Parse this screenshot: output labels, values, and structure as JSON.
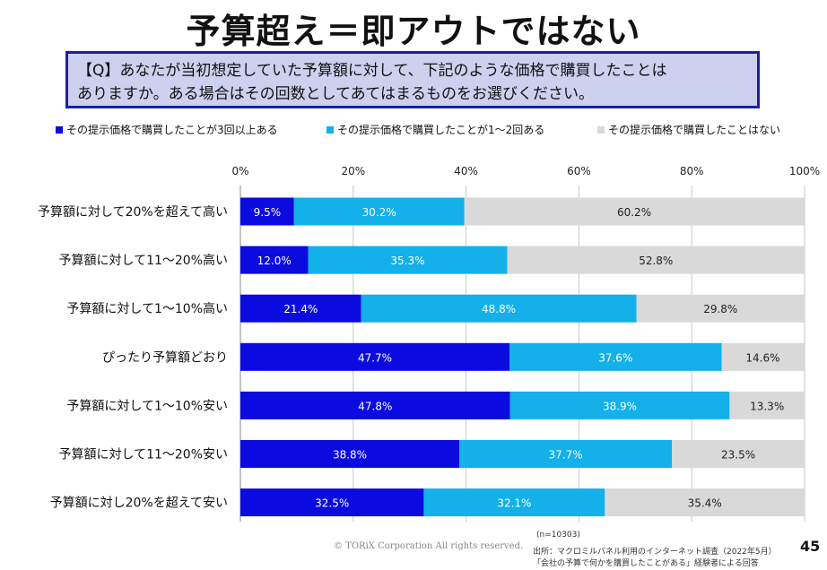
{
  "page": {
    "title": "予算超え＝即アウトではない",
    "question_line1": "【Q】あなたが当初想定していた予算額に対して、下記のような価格で購買したことは",
    "question_line2": "ありますか。ある場合はその回数としてあてはまるものをお選びください。",
    "copyright": "© TORiX Corporation All rights reserved.",
    "sample": "(n=10303)",
    "source_line1": "出所：マクロミルパネル利用のインターネット調査（2022年5月）",
    "source_line2": "「会社の予算で何かを購買したことがある」経験者による回答",
    "page_number": "45"
  },
  "chart_data": {
    "type": "bar",
    "orientation": "horizontal",
    "stacked": true,
    "title": "",
    "xlabel": "",
    "ylabel": "",
    "xlim": [
      0,
      100
    ],
    "ticks": [
      "0%",
      "20%",
      "40%",
      "60%",
      "80%",
      "100%"
    ],
    "tick_values": [
      0,
      20,
      40,
      60,
      80,
      100
    ],
    "legend_position": "top",
    "grid": true,
    "categories": [
      "予算額に対して20%を超えて高い",
      "予算額に対して11～20%高い",
      "予算額に対して1～10%高い",
      "ぴったり予算額どおり",
      "予算額に対して1～10%安い",
      "予算額に対して11～20%安い",
      "予算額に対し20%を超えて安い"
    ],
    "series": [
      {
        "name": "その提示価格で購買したことが3回以上ある",
        "color": "#0b0be0",
        "values": [
          9.5,
          12.0,
          21.4,
          47.7,
          47.8,
          38.8,
          32.5
        ],
        "labels": [
          "9.5%",
          "12.0%",
          "21.4%",
          "47.7%",
          "47.8%",
          "38.8%",
          "32.5%"
        ]
      },
      {
        "name": "その提示価格で購買したことが1～2回ある",
        "color": "#13b0ea",
        "values": [
          30.2,
          35.3,
          48.8,
          37.6,
          38.9,
          37.7,
          32.1
        ],
        "labels": [
          "30.2%",
          "35.3%",
          "48.8%",
          "37.6%",
          "38.9%",
          "37.7%",
          "32.1%"
        ]
      },
      {
        "name": "その提示価格で購買したことはない",
        "color": "#d9d9d9",
        "values": [
          60.2,
          52.8,
          29.8,
          14.6,
          13.3,
          23.5,
          35.4
        ],
        "labels": [
          "60.2%",
          "52.8%",
          "29.8%",
          "14.6%",
          "13.3%",
          "23.5%",
          "35.4%"
        ]
      }
    ]
  }
}
